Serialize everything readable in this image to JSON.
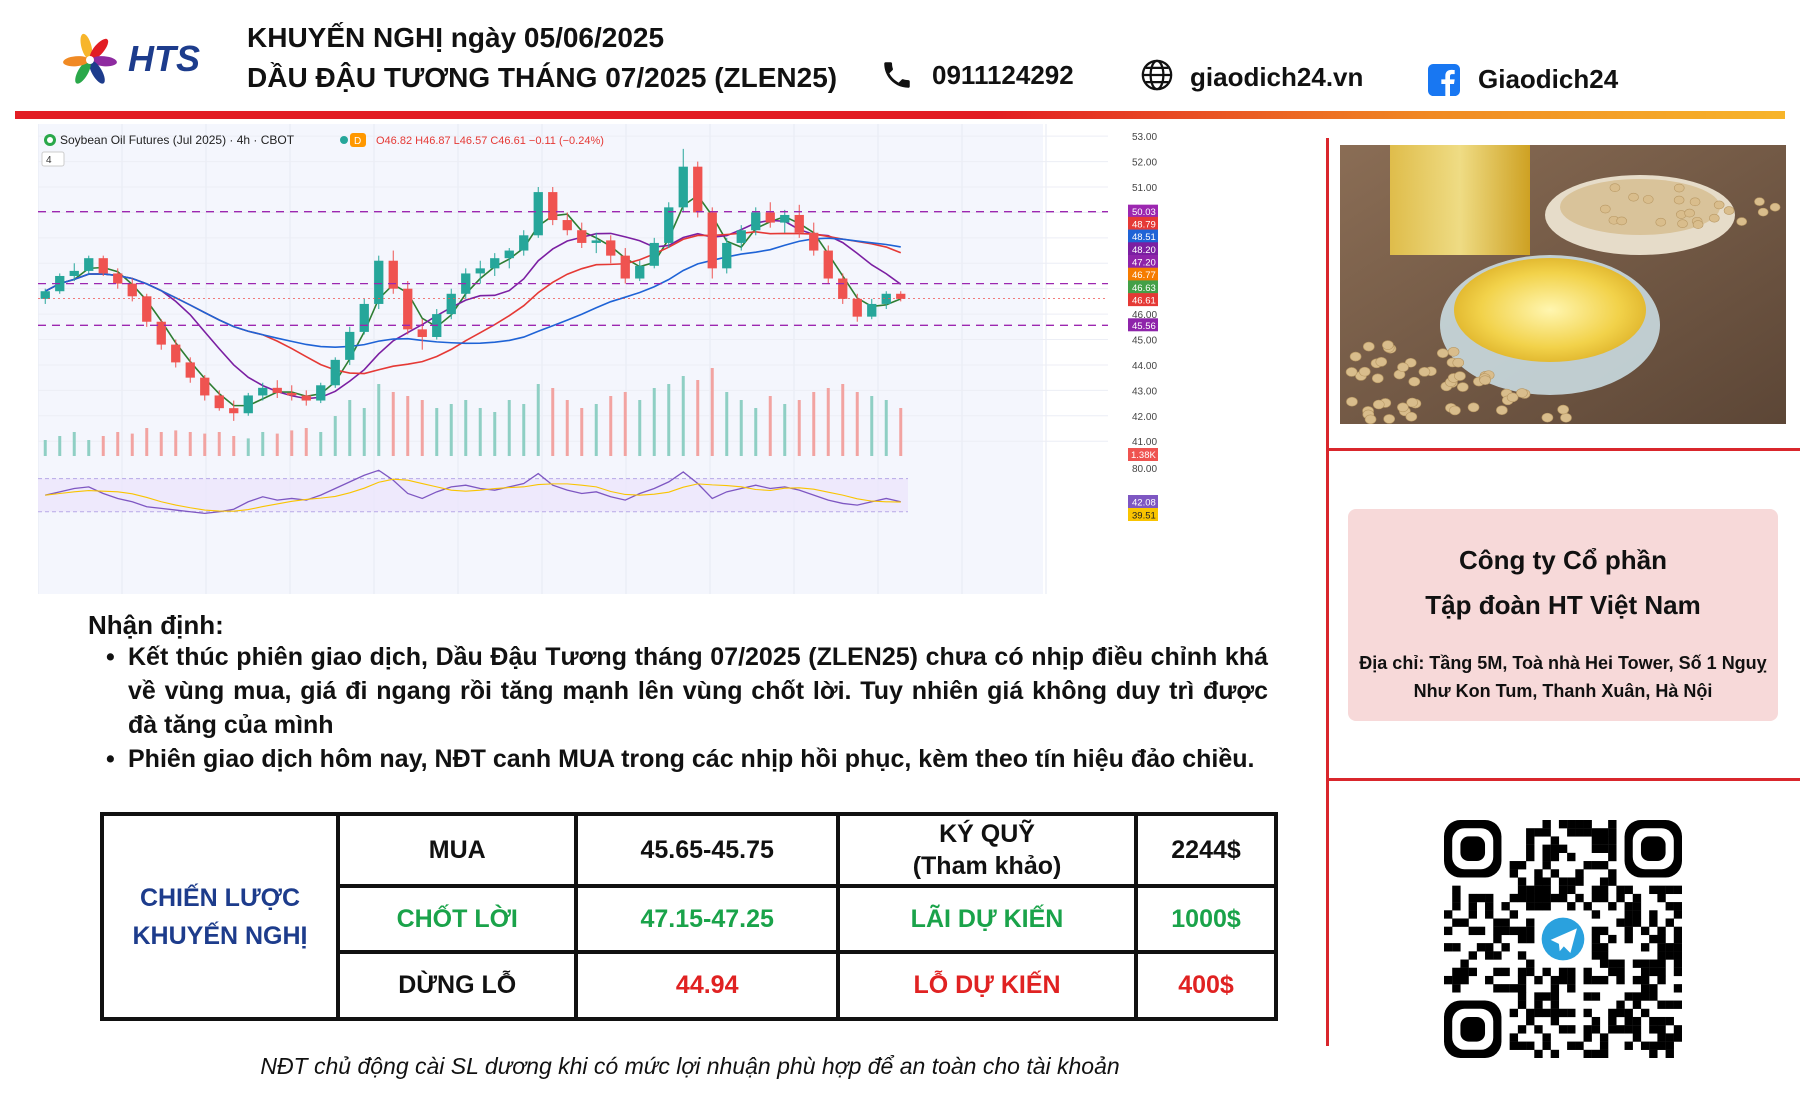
{
  "brand": {
    "logo_text": "HTS"
  },
  "header": {
    "title_line1": "KHUYẾN NGHỊ ngày 05/06/2025",
    "title_line2": "DẦU ĐẬU TƯƠNG THÁNG 07/2025 (ZLEN25)",
    "phone": "0911124292",
    "website": "giaodich24.vn",
    "facebook": "Giaodich24"
  },
  "chart": {
    "symbol_line": "Soybean Oil Futures (Jul 2025) · 4h · CBOT",
    "badge": "D",
    "ohlc": "O46.82 H46.87 L46.57 C46.61 −0.11 (−0.24%)",
    "indicator_count": "4",
    "price_ticks": [
      "53.00",
      "52.00",
      "51.00",
      "46.00",
      "45.00",
      "44.00",
      "43.00",
      "42.00",
      "41.00"
    ],
    "level_tags": [
      {
        "value": "50.03",
        "color": "#9c27b0"
      },
      {
        "value": "48.79",
        "color": "#e53935"
      },
      {
        "value": "48.51",
        "color": "#1e63d6"
      },
      {
        "value": "48.20",
        "color": "#7b1fa2"
      },
      {
        "value": "47.20",
        "color": "#8e24aa"
      },
      {
        "value": "46.77",
        "color": "#f57c00"
      },
      {
        "value": "46.63",
        "color": "#43a047"
      },
      {
        "value": "46.61",
        "color": "#e53935"
      },
      {
        "value": "45.56",
        "color": "#8e24aa"
      }
    ],
    "volume_tag": "1.38K",
    "rsi_tick": "80.00",
    "rsi_tags": [
      {
        "value": "42.08",
        "color": "#7e57c2"
      },
      {
        "value": "39.51",
        "color": "#f9c400"
      }
    ],
    "candles_ohlc": [
      [
        46.6,
        47.0,
        46.4,
        46.9
      ],
      [
        46.9,
        47.6,
        46.8,
        47.5
      ],
      [
        47.5,
        48.0,
        47.3,
        47.7
      ],
      [
        47.7,
        48.3,
        47.6,
        48.2
      ],
      [
        48.2,
        48.3,
        47.5,
        47.6
      ],
      [
        47.6,
        47.8,
        47.0,
        47.2
      ],
      [
        47.2,
        47.4,
        46.5,
        46.7
      ],
      [
        46.7,
        46.8,
        45.5,
        45.7
      ],
      [
        45.7,
        45.8,
        44.6,
        44.8
      ],
      [
        44.8,
        45.0,
        43.9,
        44.1
      ],
      [
        44.1,
        44.3,
        43.3,
        43.5
      ],
      [
        43.5,
        43.6,
        42.6,
        42.8
      ],
      [
        42.8,
        43.0,
        42.2,
        42.3
      ],
      [
        42.3,
        42.6,
        41.8,
        42.1
      ],
      [
        42.1,
        42.9,
        42.0,
        42.8
      ],
      [
        42.8,
        43.3,
        42.6,
        43.1
      ],
      [
        43.1,
        43.4,
        42.7,
        42.9
      ],
      [
        42.9,
        43.2,
        42.6,
        42.8
      ],
      [
        42.8,
        43.0,
        42.4,
        42.6
      ],
      [
        42.6,
        43.3,
        42.5,
        43.2
      ],
      [
        43.2,
        44.3,
        43.1,
        44.2
      ],
      [
        44.2,
        45.5,
        44.0,
        45.3
      ],
      [
        45.3,
        46.6,
        45.2,
        46.4
      ],
      [
        46.4,
        48.3,
        46.2,
        48.1
      ],
      [
        48.1,
        48.5,
        46.8,
        47.0
      ],
      [
        47.0,
        47.3,
        45.2,
        45.4
      ],
      [
        45.4,
        45.8,
        44.6,
        45.1
      ],
      [
        45.1,
        46.2,
        45.0,
        46.0
      ],
      [
        46.0,
        47.0,
        45.8,
        46.8
      ],
      [
        46.8,
        47.8,
        46.6,
        47.6
      ],
      [
        47.6,
        48.1,
        47.2,
        47.8
      ],
      [
        47.8,
        48.4,
        47.5,
        48.2
      ],
      [
        48.2,
        48.6,
        47.8,
        48.5
      ],
      [
        48.5,
        49.3,
        48.3,
        49.1
      ],
      [
        49.1,
        51.0,
        49.0,
        50.8
      ],
      [
        50.8,
        51.0,
        49.5,
        49.7
      ],
      [
        49.7,
        50.0,
        49.1,
        49.3
      ],
      [
        49.3,
        49.6,
        48.6,
        48.8
      ],
      [
        48.8,
        49.2,
        48.4,
        48.9
      ],
      [
        48.9,
        49.1,
        48.0,
        48.3
      ],
      [
        48.3,
        48.6,
        47.2,
        47.4
      ],
      [
        47.4,
        48.1,
        47.3,
        47.9
      ],
      [
        47.9,
        49.0,
        47.8,
        48.8
      ],
      [
        48.8,
        50.4,
        48.6,
        50.2
      ],
      [
        50.2,
        52.5,
        50.0,
        51.8
      ],
      [
        51.8,
        52.0,
        49.8,
        50.0
      ],
      [
        50.0,
        50.2,
        47.4,
        47.8
      ],
      [
        47.8,
        49.0,
        47.6,
        48.8
      ],
      [
        48.8,
        49.5,
        48.5,
        49.3
      ],
      [
        49.3,
        50.2,
        49.1,
        50.0
      ],
      [
        50.0,
        50.4,
        49.4,
        49.6
      ],
      [
        49.6,
        50.1,
        49.2,
        49.9
      ],
      [
        49.9,
        50.3,
        49.0,
        49.2
      ],
      [
        49.2,
        49.6,
        48.3,
        48.5
      ],
      [
        48.5,
        48.7,
        47.2,
        47.4
      ],
      [
        47.4,
        47.6,
        46.4,
        46.6
      ],
      [
        46.6,
        46.8,
        45.7,
        45.9
      ],
      [
        45.9,
        46.6,
        45.8,
        46.4
      ],
      [
        46.4,
        46.9,
        46.2,
        46.8
      ],
      [
        46.8,
        46.9,
        46.5,
        46.6
      ]
    ],
    "volumes": [
      0.2,
      0.25,
      0.3,
      0.2,
      0.25,
      0.3,
      0.28,
      0.35,
      0.3,
      0.32,
      0.3,
      0.28,
      0.3,
      0.25,
      0.22,
      0.3,
      0.28,
      0.32,
      0.35,
      0.3,
      0.5,
      0.7,
      0.6,
      0.9,
      0.8,
      0.75,
      0.7,
      0.6,
      0.65,
      0.7,
      0.6,
      0.55,
      0.7,
      0.65,
      0.9,
      0.85,
      0.7,
      0.6,
      0.65,
      0.75,
      0.8,
      0.7,
      0.85,
      0.9,
      1.0,
      0.95,
      1.1,
      0.8,
      0.7,
      0.6,
      0.75,
      0.65,
      0.7,
      0.8,
      0.85,
      0.9,
      0.8,
      0.75,
      0.7,
      0.6
    ],
    "rsi": [
      50,
      54,
      58,
      60,
      52,
      46,
      42,
      36,
      34,
      32,
      30,
      28,
      30,
      33,
      42,
      48,
      44,
      46,
      44,
      50,
      58,
      66,
      74,
      80,
      68,
      52,
      46,
      54,
      60,
      62,
      58,
      56,
      60,
      64,
      76,
      62,
      56,
      52,
      54,
      48,
      44,
      52,
      58,
      66,
      78,
      64,
      46,
      54,
      58,
      62,
      58,
      60,
      56,
      50,
      44,
      40,
      38,
      42,
      46,
      42
    ]
  },
  "company": {
    "name_line1": "Công ty Cổ phần",
    "name_line2": "Tập đoàn HT Việt Nam",
    "address": "Địa chỉ: Tầng 5M, Toà nhà Hei Tower, Số 1 Nguỵ Như Kon Tum, Thanh Xuân, Hà Nội"
  },
  "analysis": {
    "heading": "Nhận định:",
    "bullets": [
      "Kết thúc phiên giao dịch, Dầu Đậu Tương tháng 07/2025 (ZLEN25) chưa có nhịp điều chỉnh khá về vùng mua, giá đi ngang rồi tăng mạnh lên vùng chốt lời. Tuy nhiên giá không duy trì được đà tăng của mình",
      "Phiên giao dịch hôm nay, NĐT canh MUA trong các nhịp hồi phục, kèm theo tín hiệu đảo chiều."
    ]
  },
  "strategy": {
    "label_line1": "CHIẾN LƯỢC",
    "label_line2": "KHUYẾN NGHỊ",
    "rows": [
      {
        "c1": "MUA",
        "c2": "45.65-45.75",
        "c3_line1": "KÝ QUỸ",
        "c3_line2": "(Tham khảo)",
        "c4": "2244$"
      },
      {
        "c1": "CHỐT LỜI",
        "c2": "47.15-47.25",
        "c3": "LÃI DỰ KIẾN",
        "c4": "1000$"
      },
      {
        "c1": "DỪNG LỖ",
        "c2": "44.94",
        "c3": "LỖ DỰ KIẾN",
        "c4": "400$"
      }
    ]
  },
  "footnote": "NĐT chủ động cài SL dương khi có mức lợi nhuận phù hợp để an toàn cho tài khoản"
}
